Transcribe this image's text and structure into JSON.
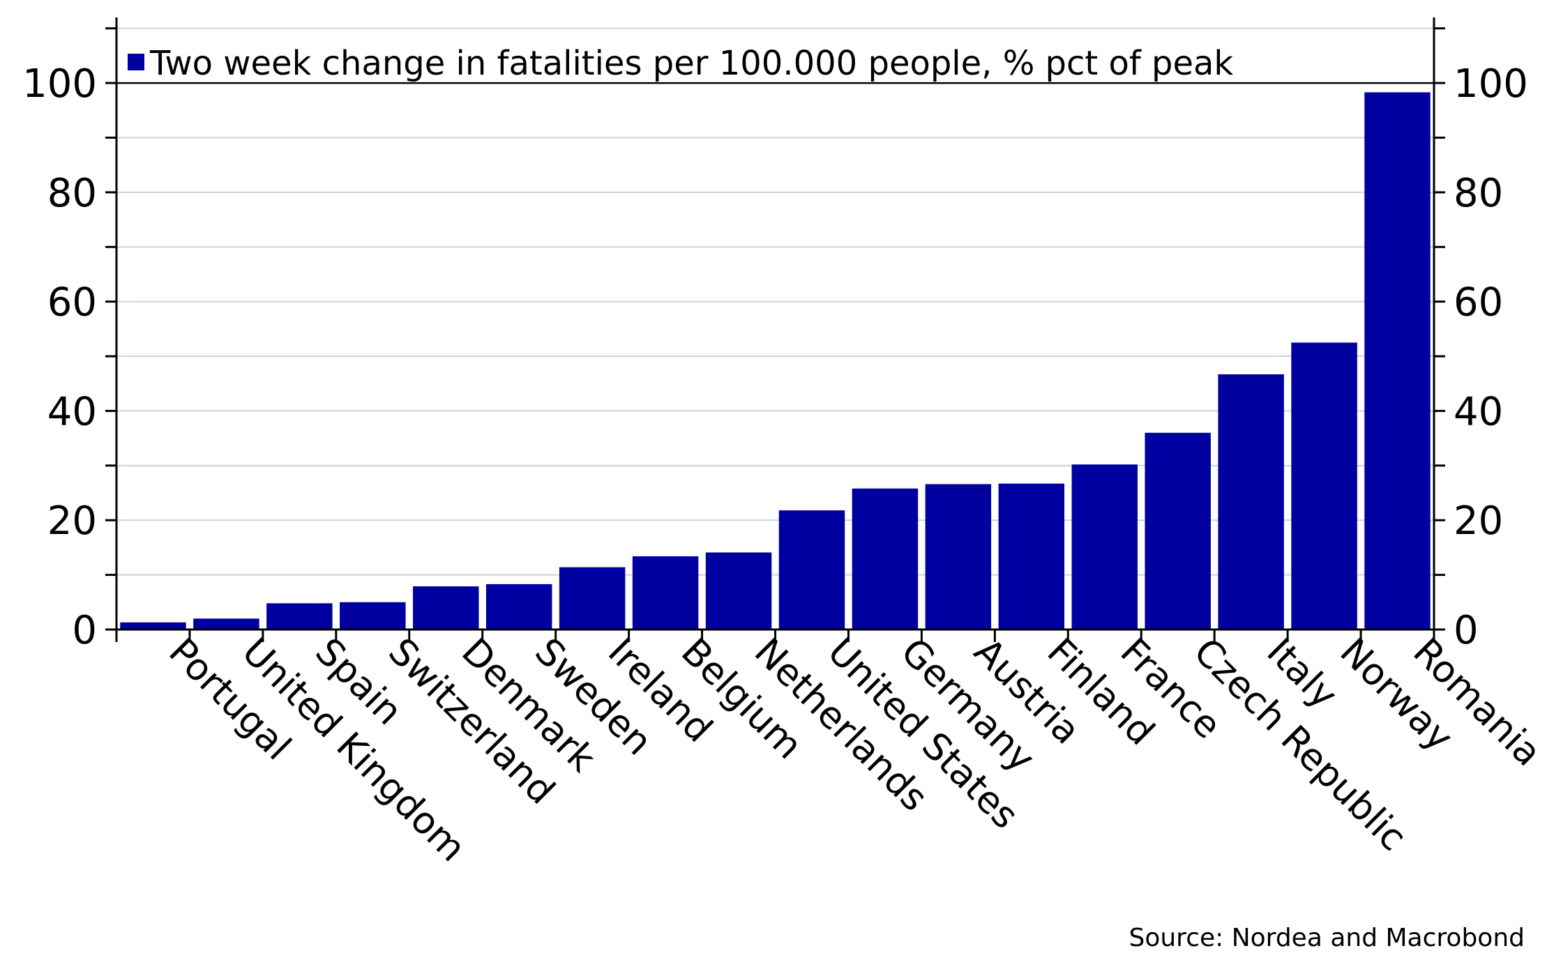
{
  "chart_data": {
    "type": "bar",
    "categories": [
      "Portugal",
      "United Kingdom",
      "Spain",
      "Switzerland",
      "Denmark",
      "Sweden",
      "Ireland",
      "Belgium",
      "Netherlands",
      "United States",
      "Germany",
      "Austria",
      "Finland",
      "France",
      "Czech Republic",
      "Italy",
      "Norway",
      "Romania"
    ],
    "series": [
      {
        "name": "Two week change in fatalities per 100.000 people, % pct of peak",
        "values": [
          1.3,
          2.0,
          4.8,
          5.0,
          7.9,
          8.3,
          11.4,
          13.4,
          14.1,
          21.8,
          25.8,
          26.6,
          26.7,
          30.2,
          36.0,
          46.7,
          52.5,
          98.3
        ],
        "color": "#0000a0"
      }
    ],
    "ylim": [
      0,
      112
    ],
    "yticks": [
      0,
      20,
      40,
      60,
      80,
      100
    ],
    "ytick_labels": [
      "0",
      "20",
      "40",
      "60",
      "80",
      "100"
    ],
    "xlabel": "",
    "ylabel": "",
    "secondary_y_axis": true,
    "grid": true,
    "gridline_color": "#c8d4de",
    "legend_position": "top-left",
    "source": "Source: Nordea and Macrobond"
  }
}
